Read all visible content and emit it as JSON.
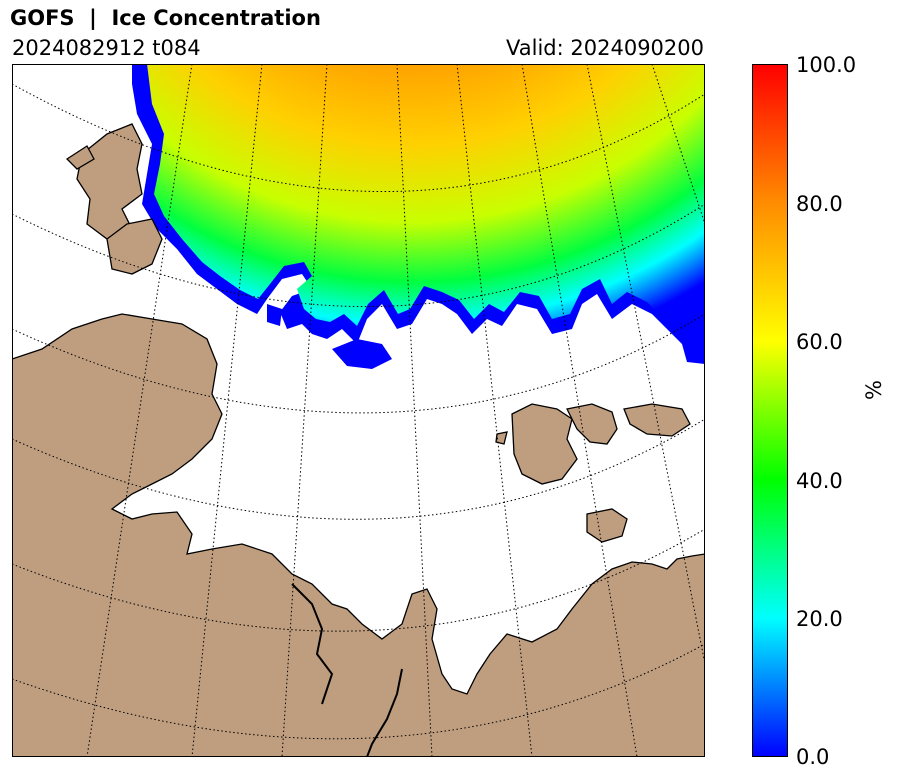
{
  "header": {
    "title": "GOFS  |  Ice Concentration",
    "run": "2024082912 t084",
    "valid": "Valid: 2024090200"
  },
  "colorbar": {
    "label": "%",
    "ticks": [
      "0.0",
      "20.0",
      "40.0",
      "60.0",
      "80.0",
      "100.0"
    ],
    "stops": [
      "#0000ff",
      "#00ffff",
      "#00ff00",
      "#ffff00",
      "#ff8c00",
      "#ff0000"
    ]
  },
  "colors": {
    "land": "#bf9e7f",
    "ocean": "#ffffff",
    "coast": "#000000"
  }
}
